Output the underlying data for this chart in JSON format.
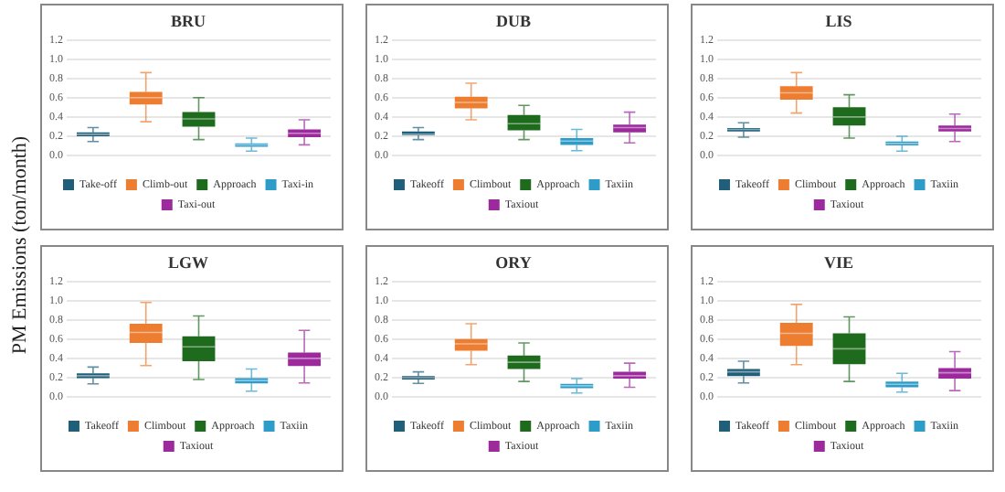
{
  "chart_data": [
    {
      "type": "box",
      "title": "BRU",
      "ylabel": "PM Emissions (ton/month)",
      "categories": [
        null,
        null,
        null,
        null,
        null
      ],
      "ylim": [
        0,
        1.2
      ],
      "yticks": [
        {
          "value": 0,
          "label": "0.0"
        },
        {
          "value": 0.2,
          "label": "0.2"
        },
        {
          "value": 0.4,
          "label": "0.4"
        },
        {
          "value": 0.6,
          "label": "0.6"
        },
        {
          "value": 0.8,
          "label": "0.8"
        },
        {
          "value": 1,
          "label": "1.0"
        },
        {
          "value": 1.2,
          "label": "1.2"
        }
      ],
      "grid": "y",
      "legend": "bottom",
      "series": [
        {
          "name": "Take-off",
          "color": "#1f5f7a",
          "boxes": [
            {
              "low": 0.145,
              "q1": 0.2,
              "median": 0.22,
              "q3": 0.24,
              "high": 0.29
            },
            null,
            null,
            null,
            null
          ]
        },
        {
          "name": "Climb-out",
          "color": "#ed7d31",
          "boxes": [
            null,
            {
              "low": 0.35,
              "q1": 0.53,
              "median": 0.6,
              "q3": 0.66,
              "high": 0.86
            },
            null,
            null,
            null
          ]
        },
        {
          "name": "Approach",
          "color": "#1e6b1e",
          "boxes": [
            null,
            null,
            {
              "low": 0.165,
              "q1": 0.3,
              "median": 0.38,
              "q3": 0.45,
              "high": 0.6
            },
            null,
            null
          ]
        },
        {
          "name": "Taxi-in",
          "color": "#2e9cc8",
          "boxes": [
            null,
            null,
            null,
            {
              "low": 0.045,
              "q1": 0.09,
              "median": 0.11,
              "q3": 0.125,
              "high": 0.18
            },
            null
          ]
        },
        {
          "name": "Taxi-out",
          "color": "#9c2a9c",
          "boxes": [
            null,
            null,
            null,
            null,
            {
              "low": 0.11,
              "q1": 0.19,
              "median": 0.23,
              "q3": 0.27,
              "high": 0.37
            }
          ]
        }
      ]
    },
    {
      "type": "box",
      "title": "DUB",
      "categories": [
        null,
        null,
        null,
        null,
        null
      ],
      "ylim": [
        0,
        1.2
      ],
      "yticks": [
        {
          "value": 0,
          "label": "0.0"
        },
        {
          "value": 0.2,
          "label": "0.2"
        },
        {
          "value": 0.4,
          "label": "0.4"
        },
        {
          "value": 0.6,
          "label": "0.6"
        },
        {
          "value": 0.8,
          "label": "0.8"
        },
        {
          "value": 1,
          "label": "1.0"
        },
        {
          "value": 1.2,
          "label": "1.2"
        }
      ],
      "grid": "y",
      "legend": "bottom",
      "series": [
        {
          "name": "Takeoff",
          "color": "#1f5f7a",
          "boxes": [
            {
              "low": 0.165,
              "q1": 0.21,
              "median": 0.22,
              "q3": 0.25,
              "high": 0.29
            },
            null,
            null,
            null,
            null
          ]
        },
        {
          "name": "Climbout",
          "color": "#ed7d31",
          "boxes": [
            null,
            {
              "low": 0.37,
              "q1": 0.49,
              "median": 0.55,
              "q3": 0.61,
              "high": 0.75
            },
            null,
            null,
            null
          ]
        },
        {
          "name": "Approach",
          "color": "#1e6b1e",
          "boxes": [
            null,
            null,
            {
              "low": 0.165,
              "q1": 0.26,
              "median": 0.33,
              "q3": 0.42,
              "high": 0.52
            },
            null,
            null
          ]
        },
        {
          "name": "Taxiin",
          "color": "#2e9cc8",
          "boxes": [
            null,
            null,
            null,
            {
              "low": 0.05,
              "q1": 0.11,
              "median": 0.15,
              "q3": 0.18,
              "high": 0.27
            },
            null
          ]
        },
        {
          "name": "Taxiout",
          "color": "#9c2a9c",
          "boxes": [
            null,
            null,
            null,
            null,
            {
              "low": 0.13,
              "q1": 0.24,
              "median": 0.29,
              "q3": 0.32,
              "high": 0.45
            }
          ]
        }
      ]
    },
    {
      "type": "box",
      "title": "LIS",
      "categories": [
        null,
        null,
        null,
        null,
        null
      ],
      "ylim": [
        0,
        1.2
      ],
      "yticks": [
        {
          "value": 0,
          "label": "0.0"
        },
        {
          "value": 0.2,
          "label": "0.2"
        },
        {
          "value": 0.4,
          "label": "0.4"
        },
        {
          "value": 0.6,
          "label": "0.6"
        },
        {
          "value": 0.8,
          "label": "0.8"
        },
        {
          "value": 1,
          "label": "1.0"
        },
        {
          "value": 1.2,
          "label": "1.2"
        }
      ],
      "grid": "y",
      "legend": "bottom",
      "series": [
        {
          "name": "Takeoff",
          "color": "#1f5f7a",
          "boxes": [
            {
              "low": 0.19,
              "q1": 0.25,
              "median": 0.27,
              "q3": 0.285,
              "high": 0.34
            },
            null,
            null,
            null,
            null
          ]
        },
        {
          "name": "Climbout",
          "color": "#ed7d31",
          "boxes": [
            null,
            {
              "low": 0.44,
              "q1": 0.58,
              "median": 0.65,
              "q3": 0.72,
              "high": 0.86
            },
            null,
            null,
            null
          ]
        },
        {
          "name": "Approach",
          "color": "#1e6b1e",
          "boxes": [
            null,
            null,
            {
              "low": 0.18,
              "q1": 0.31,
              "median": 0.4,
              "q3": 0.5,
              "high": 0.63
            },
            null,
            null
          ]
        },
        {
          "name": "Taxiin",
          "color": "#2e9cc8",
          "boxes": [
            null,
            null,
            null,
            {
              "low": 0.045,
              "q1": 0.105,
              "median": 0.125,
              "q3": 0.145,
              "high": 0.2
            },
            null
          ]
        },
        {
          "name": "Taxiout",
          "color": "#9c2a9c",
          "boxes": [
            null,
            null,
            null,
            null,
            {
              "low": 0.145,
              "q1": 0.25,
              "median": 0.28,
              "q3": 0.31,
              "high": 0.43
            }
          ]
        }
      ]
    },
    {
      "type": "box",
      "title": "LGW",
      "categories": [
        null,
        null,
        null,
        null,
        null
      ],
      "ylim": [
        0,
        1.2
      ],
      "yticks": [
        {
          "value": 0,
          "label": "0.0"
        },
        {
          "value": 0.2,
          "label": "0.2"
        },
        {
          "value": 0.4,
          "label": "0.4"
        },
        {
          "value": 0.6,
          "label": "0.6"
        },
        {
          "value": 0.8,
          "label": "0.8"
        },
        {
          "value": 1,
          "label": "1.0"
        },
        {
          "value": 1.2,
          "label": "1.2"
        }
      ],
      "grid": "y",
      "legend": "bottom",
      "series": [
        {
          "name": "Takeoff",
          "color": "#1f5f7a",
          "boxes": [
            {
              "low": 0.135,
              "q1": 0.195,
              "median": 0.22,
              "q3": 0.245,
              "high": 0.31
            },
            null,
            null,
            null,
            null
          ]
        },
        {
          "name": "Climbout",
          "color": "#ed7d31",
          "boxes": [
            null,
            {
              "low": 0.325,
              "q1": 0.56,
              "median": 0.67,
              "q3": 0.76,
              "high": 0.98
            },
            null,
            null,
            null
          ]
        },
        {
          "name": "Approach",
          "color": "#1e6b1e",
          "boxes": [
            null,
            null,
            {
              "low": 0.18,
              "q1": 0.37,
              "median": 0.52,
              "q3": 0.63,
              "high": 0.84
            },
            null,
            null
          ]
        },
        {
          "name": "Taxiin",
          "color": "#2e9cc8",
          "boxes": [
            null,
            null,
            null,
            {
              "low": 0.06,
              "q1": 0.14,
              "median": 0.17,
              "q3": 0.195,
              "high": 0.29
            },
            null
          ]
        },
        {
          "name": "Taxiout",
          "color": "#9c2a9c",
          "boxes": [
            null,
            null,
            null,
            null,
            {
              "low": 0.145,
              "q1": 0.32,
              "median": 0.4,
              "q3": 0.46,
              "high": 0.69
            }
          ]
        }
      ]
    },
    {
      "type": "box",
      "title": "ORY",
      "categories": [
        null,
        null,
        null,
        null,
        null
      ],
      "ylim": [
        0,
        1.2
      ],
      "yticks": [
        {
          "value": 0,
          "label": "0.0"
        },
        {
          "value": 0.2,
          "label": "0.2"
        },
        {
          "value": 0.4,
          "label": "0.4"
        },
        {
          "value": 0.6,
          "label": "0.6"
        },
        {
          "value": 0.8,
          "label": "0.8"
        },
        {
          "value": 1,
          "label": "1.0"
        },
        {
          "value": 1.2,
          "label": "1.2"
        }
      ],
      "grid": "y",
      "legend": "bottom",
      "series": [
        {
          "name": "Takeoff",
          "color": "#1f5f7a",
          "boxes": [
            {
              "low": 0.14,
              "q1": 0.18,
              "median": 0.2,
              "q3": 0.215,
              "high": 0.26
            },
            null,
            null,
            null,
            null
          ]
        },
        {
          "name": "Climbout",
          "color": "#ed7d31",
          "boxes": [
            null,
            {
              "low": 0.335,
              "q1": 0.48,
              "median": 0.55,
              "q3": 0.6,
              "high": 0.76
            },
            null,
            null,
            null
          ]
        },
        {
          "name": "Approach",
          "color": "#1e6b1e",
          "boxes": [
            null,
            null,
            {
              "low": 0.16,
              "q1": 0.29,
              "median": 0.36,
              "q3": 0.43,
              "high": 0.56
            },
            null,
            null
          ]
        },
        {
          "name": "Taxiin",
          "color": "#2e9cc8",
          "boxes": [
            null,
            null,
            null,
            {
              "low": 0.04,
              "q1": 0.09,
              "median": 0.115,
              "q3": 0.135,
              "high": 0.19
            },
            null
          ]
        },
        {
          "name": "Taxiout",
          "color": "#9c2a9c",
          "boxes": [
            null,
            null,
            null,
            null,
            {
              "low": 0.1,
              "q1": 0.19,
              "median": 0.22,
              "q3": 0.26,
              "high": 0.35
            }
          ]
        }
      ]
    },
    {
      "type": "box",
      "title": "VIE",
      "categories": [
        null,
        null,
        null,
        null,
        null
      ],
      "ylim": [
        0,
        1.2
      ],
      "yticks": [
        {
          "value": 0,
          "label": "0.0"
        },
        {
          "value": 0.2,
          "label": "0.2"
        },
        {
          "value": 0.4,
          "label": "0.4"
        },
        {
          "value": 0.6,
          "label": "0.6"
        },
        {
          "value": 0.8,
          "label": "0.8"
        },
        {
          "value": 1,
          "label": "1.0"
        },
        {
          "value": 1.2,
          "label": "1.2"
        }
      ],
      "grid": "y",
      "legend": "bottom",
      "series": [
        {
          "name": "Takeoff",
          "color": "#1f5f7a",
          "boxes": [
            {
              "low": 0.145,
              "q1": 0.215,
              "median": 0.26,
              "q3": 0.29,
              "high": 0.37
            },
            null,
            null,
            null,
            null
          ]
        },
        {
          "name": "Climbout",
          "color": "#ed7d31",
          "boxes": [
            null,
            {
              "low": 0.335,
              "q1": 0.53,
              "median": 0.66,
              "q3": 0.77,
              "high": 0.96
            },
            null,
            null,
            null
          ]
        },
        {
          "name": "Approach",
          "color": "#1e6b1e",
          "boxes": [
            null,
            null,
            {
              "low": 0.16,
              "q1": 0.34,
              "median": 0.5,
              "q3": 0.66,
              "high": 0.83
            },
            null,
            null
          ]
        },
        {
          "name": "Taxiin",
          "color": "#2e9cc8",
          "boxes": [
            null,
            null,
            null,
            {
              "low": 0.05,
              "q1": 0.1,
              "median": 0.13,
              "q3": 0.16,
              "high": 0.245
            },
            null
          ]
        },
        {
          "name": "Taxiout",
          "color": "#9c2a9c",
          "boxes": [
            null,
            null,
            null,
            null,
            {
              "low": 0.065,
              "q1": 0.19,
              "median": 0.25,
              "q3": 0.3,
              "high": 0.47
            }
          ]
        }
      ]
    }
  ]
}
